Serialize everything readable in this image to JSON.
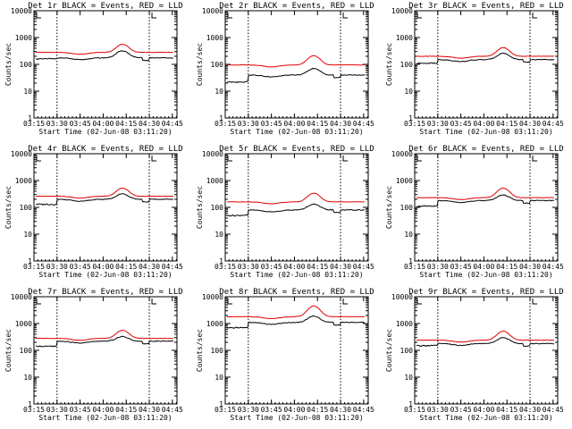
{
  "chart_data": {
    "type": "line",
    "y_scale": "log",
    "ylim": [
      1,
      10000
    ],
    "xlim_minutes": [
      3.25,
      4.8
    ],
    "y_ticks": [
      1,
      10,
      100,
      1000,
      10000
    ],
    "y_tick_labels": [
      "1",
      "10",
      "100",
      "1000",
      "10000"
    ],
    "x_tick_values": [
      3.25,
      3.5,
      3.75,
      4.0,
      4.25,
      4.5,
      4.75
    ],
    "x_tick_labels": [
      "03:15",
      "03:30",
      "03:45",
      "04:00",
      "04:15",
      "04:30",
      "04:45"
    ],
    "marker_times": [
      3.5,
      4.5
    ],
    "ylabel": "Counts/sec",
    "xlabel": "Start Time (02-Jun-08 03:11:20)",
    "series_names": [
      "BLACK = Events",
      "RED = LLD"
    ],
    "colors": {
      "events": "#000000",
      "lld": "#e00000"
    },
    "panels": [
      {
        "title": "Det 1r BLACK = Events, RED = LLD",
        "events_base": 175,
        "events_pre": 160,
        "lld_base": 280,
        "lld_peak": 560,
        "events_peak": 320
      },
      {
        "title": "Det 2r BLACK = Events, RED = LLD",
        "events_base": 40,
        "events_pre": 22,
        "lld_base": 95,
        "lld_peak": 210,
        "events_peak": 70
      },
      {
        "title": "Det 3r BLACK = Events, RED = LLD",
        "events_base": 150,
        "events_pre": 110,
        "lld_base": 200,
        "lld_peak": 420,
        "events_peak": 260
      },
      {
        "title": "Det 4r BLACK = Events, RED = LLD",
        "events_base": 200,
        "events_pre": 130,
        "lld_base": 260,
        "lld_peak": 520,
        "events_peak": 320
      },
      {
        "title": "Det 5r BLACK = Events, RED = LLD",
        "events_base": 80,
        "events_pre": 50,
        "lld_base": 160,
        "lld_peak": 340,
        "events_peak": 130
      },
      {
        "title": "Det 6r BLACK = Events, RED = LLD",
        "events_base": 180,
        "events_pre": 110,
        "lld_base": 230,
        "lld_peak": 520,
        "events_peak": 290
      },
      {
        "title": "Det 7r BLACK = Events, RED = LLD",
        "events_base": 220,
        "events_pre": 140,
        "lld_base": 280,
        "lld_peak": 560,
        "events_peak": 330
      },
      {
        "title": "Det 8r BLACK = Events, RED = LLD",
        "events_base": 1100,
        "events_pre": 700,
        "lld_base": 1800,
        "lld_peak": 4500,
        "events_peak": 1900
      },
      {
        "title": "Det 9r BLACK = Events, RED = LLD",
        "events_base": 180,
        "events_pre": 150,
        "lld_base": 240,
        "lld_peak": 520,
        "events_peak": 300
      }
    ]
  }
}
